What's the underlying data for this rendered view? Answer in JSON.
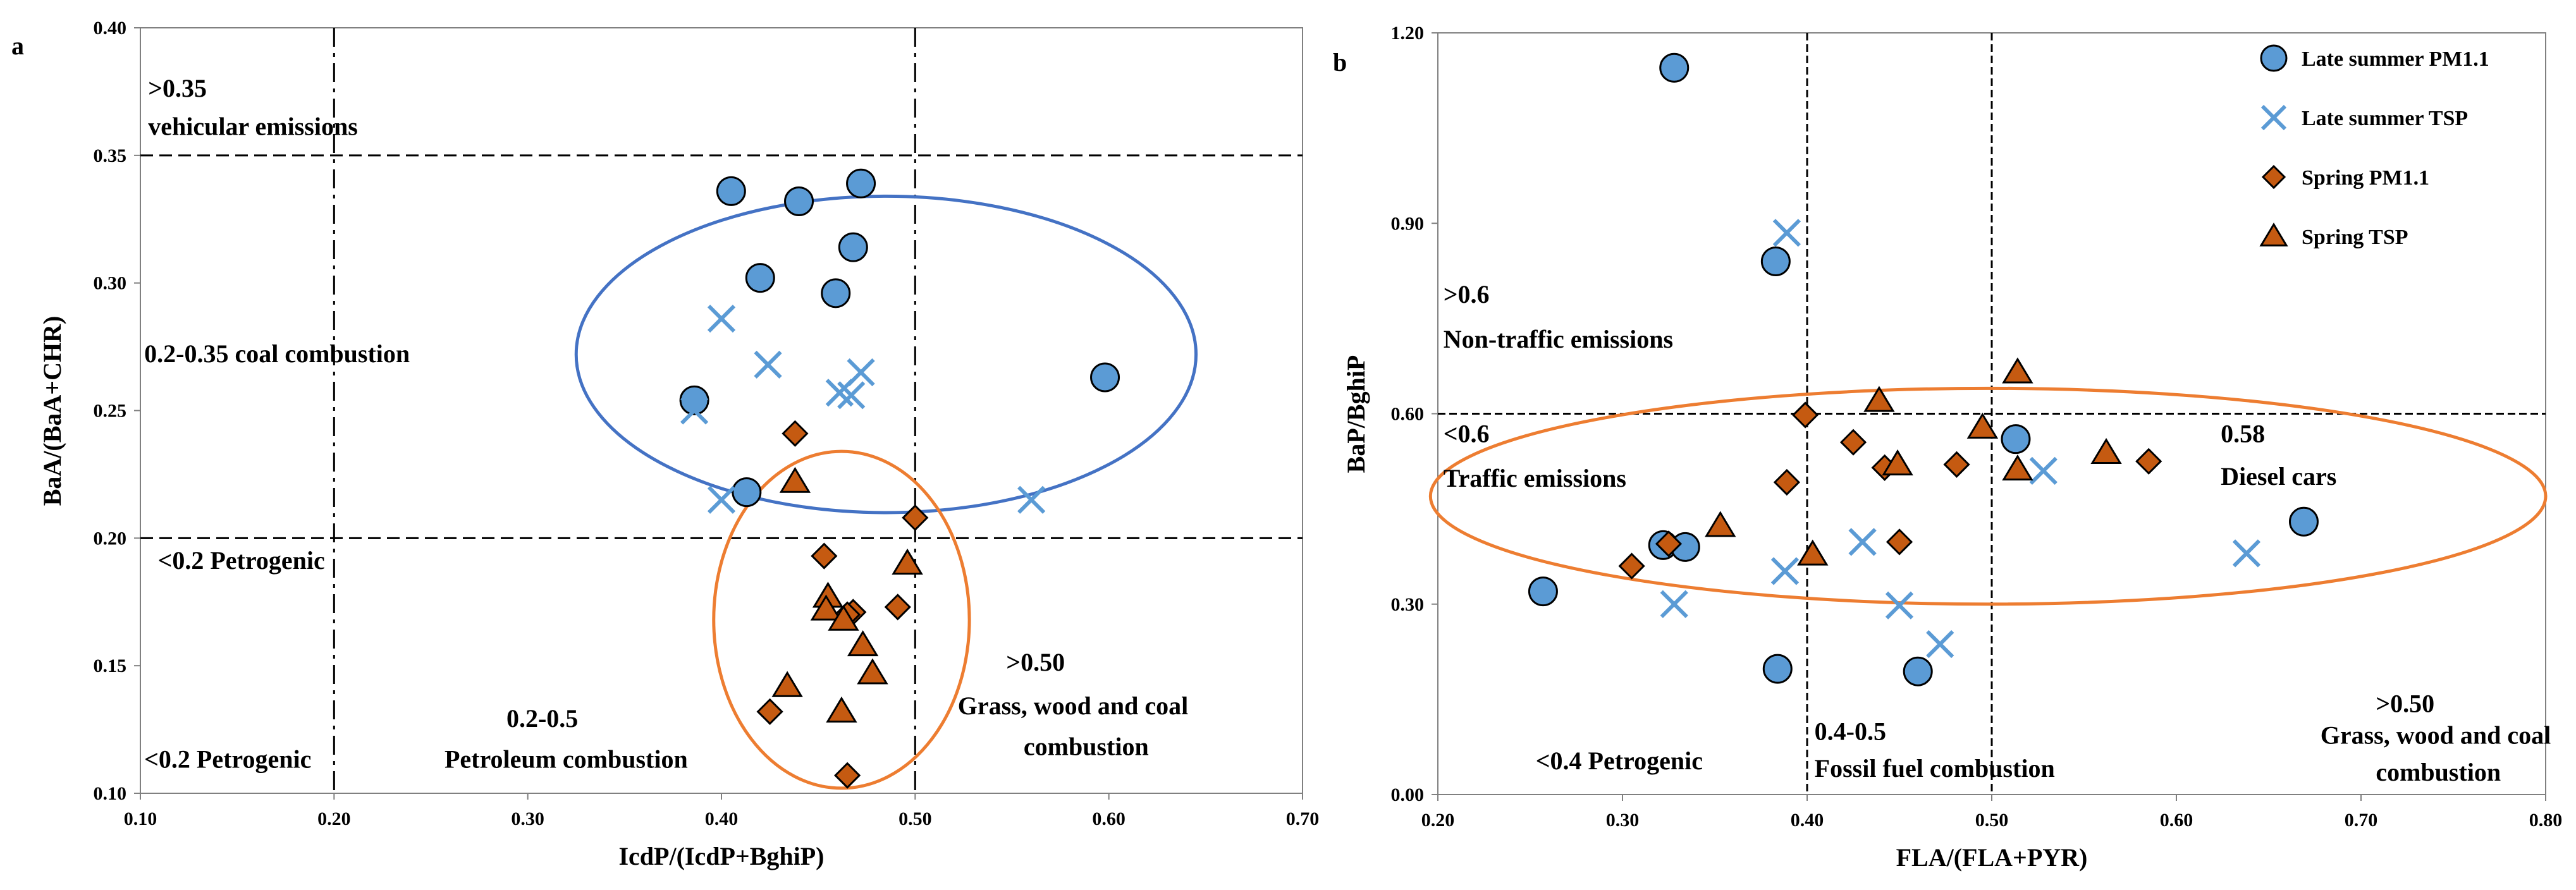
{
  "colors": {
    "late_summer": "#5B9BD5",
    "late_summer_stroke": "#000000",
    "spring": "#C55A11",
    "spring_stroke": "#000000",
    "ellipse_blue": "#4472C4",
    "ellipse_orange": "#ED7D31"
  },
  "chart_data": [
    {
      "panel_label": "a",
      "type": "scatter",
      "xlabel": "IcdP/(IcdP+BghiP)",
      "ylabel": "BaA/(BaA+CHR)",
      "xlim": [
        0.1,
        0.7
      ],
      "ylim": [
        0.1,
        0.4
      ],
      "xticks": [
        "0.10",
        "0.20",
        "0.30",
        "0.40",
        "0.50",
        "0.60",
        "0.70"
      ],
      "yticks": [
        "0.10",
        "0.15",
        "0.20",
        "0.25",
        "0.30",
        "0.35",
        "0.40"
      ],
      "reference_lines": {
        "horizontal": [
          0.2,
          0.35
        ],
        "vertical": [
          0.2,
          0.5
        ]
      },
      "annotations": [
        {
          "text": ">0.35",
          "x": 0.104,
          "y": 0.373
        },
        {
          "text": "vehicular emissions",
          "x": 0.104,
          "y": 0.358
        },
        {
          "text": "0.2-0.35  coal combustion",
          "x": 0.102,
          "y": 0.269
        },
        {
          "text": "<0.2 Petrogenic",
          "x": 0.109,
          "y": 0.188
        },
        {
          "text": "<0.2 Petrogenic",
          "x": 0.102,
          "y": 0.11
        },
        {
          "text": "0.2-0.5",
          "x": 0.289,
          "y": 0.126
        },
        {
          "text": "Petroleum combustion",
          "x": 0.257,
          "y": 0.11
        },
        {
          "text": ">0.50",
          "x": 0.547,
          "y": 0.148
        },
        {
          "text": "Grass, wood and coal",
          "x": 0.522,
          "y": 0.131
        },
        {
          "text": "combustion",
          "x": 0.556,
          "y": 0.115
        }
      ],
      "ellipses": [
        {
          "color": "blue",
          "cx": 0.485,
          "cy": 0.272,
          "rx": 0.16,
          "ry": 0.062
        },
        {
          "color": "orange",
          "cx": 0.462,
          "cy": 0.168,
          "rx": 0.066,
          "ry": 0.066
        }
      ],
      "series": [
        {
          "name": "Late summer PM1.1",
          "marker": "circle",
          "x": [
            0.405,
            0.44,
            0.472,
            0.468,
            0.42,
            0.459,
            0.386,
            0.413,
            0.598
          ],
          "y": [
            0.336,
            0.332,
            0.339,
            0.314,
            0.302,
            0.296,
            0.254,
            0.218,
            0.263
          ]
        },
        {
          "name": "Late summer TSP",
          "marker": "x",
          "x": [
            0.4,
            0.424,
            0.472,
            0.461,
            0.467,
            0.386,
            0.4,
            0.56
          ],
          "y": [
            0.286,
            0.268,
            0.265,
            0.257,
            0.256,
            0.25,
            0.215,
            0.215
          ]
        },
        {
          "name": "Spring PM1.1",
          "marker": "diamond",
          "x": [
            0.438,
            0.5,
            0.453,
            0.468,
            0.491,
            0.465,
            0.425,
            0.465
          ],
          "y": [
            0.241,
            0.208,
            0.193,
            0.171,
            0.173,
            0.17,
            0.132,
            0.107
          ]
        },
        {
          "name": "Spring TSP",
          "marker": "triangle",
          "x": [
            0.438,
            0.496,
            0.455,
            0.454,
            0.463,
            0.473,
            0.478,
            0.434,
            0.462
          ],
          "y": [
            0.222,
            0.19,
            0.177,
            0.172,
            0.168,
            0.158,
            0.147,
            0.142,
            0.132
          ]
        }
      ]
    },
    {
      "panel_label": "b",
      "type": "scatter",
      "xlabel": "FLA/(FLA+PYR)",
      "ylabel": "BaP/BghiP",
      "xlim": [
        0.2,
        0.8
      ],
      "ylim": [
        0.0,
        1.2
      ],
      "xticks": [
        "0.20",
        "0.30",
        "0.40",
        "0.50",
        "0.60",
        "0.70",
        "0.80"
      ],
      "yticks": [
        "0.00",
        "0.30",
        "0.60",
        "0.90",
        "1.20"
      ],
      "reference_lines": {
        "horizontal": [
          0.6
        ],
        "vertical": [
          0.4,
          0.5
        ]
      },
      "annotations": [
        {
          "text": ">0.6",
          "x": 0.203,
          "y": 0.775
        },
        {
          "text": "Non-traffic emissions",
          "x": 0.203,
          "y": 0.704
        },
        {
          "text": "<0.6",
          "x": 0.203,
          "y": 0.555
        },
        {
          "text": "Traffic emissions",
          "x": 0.203,
          "y": 0.485
        },
        {
          "text": "0.58",
          "x": 0.624,
          "y": 0.555
        },
        {
          "text": "Diesel cars",
          "x": 0.624,
          "y": 0.488
        },
        {
          "text": "<0.4 Petrogenic",
          "x": 0.253,
          "y": 0.04
        },
        {
          "text": "0.4-0.5",
          "x": 0.404,
          "y": 0.086
        },
        {
          "text": "Fossil fuel combustion",
          "x": 0.404,
          "y": 0.028
        },
        {
          "text": ">0.50",
          "x": 0.708,
          "y": 0.13
        },
        {
          "text": "Grass, wood and coal",
          "x": 0.678,
          "y": 0.08
        },
        {
          "text": "combustion",
          "x": 0.708,
          "y": 0.022
        }
      ],
      "ellipses": [
        {
          "color": "orange",
          "cx": 0.498,
          "cy": 0.47,
          "rx": 0.302,
          "ry": 0.17
        }
      ],
      "legend": {
        "position": "top-right",
        "entries": [
          "Late summer PM1.1",
          "Late summer TSP",
          "Spring PM1.1",
          "Spring TSP"
        ]
      },
      "series": [
        {
          "name": "Late summer PM1.1",
          "marker": "circle",
          "x": [
            0.328,
            0.383,
            0.257,
            0.322,
            0.334,
            0.384,
            0.46,
            0.513,
            0.669
          ],
          "y": [
            1.145,
            0.84,
            0.32,
            0.393,
            0.39,
            0.198,
            0.194,
            0.56,
            0.43
          ]
        },
        {
          "name": "Late summer TSP",
          "marker": "x",
          "x": [
            0.389,
            0.328,
            0.388,
            0.43,
            0.45,
            0.472,
            0.528,
            0.638
          ],
          "y": [
            0.885,
            0.3,
            0.352,
            0.398,
            0.298,
            0.237,
            0.51,
            0.38
          ]
        },
        {
          "name": "Spring PM1.1",
          "marker": "diamond",
          "x": [
            0.399,
            0.425,
            0.442,
            0.389,
            0.481,
            0.585,
            0.305,
            0.325,
            0.45
          ],
          "y": [
            0.598,
            0.555,
            0.515,
            0.492,
            0.52,
            0.525,
            0.36,
            0.395,
            0.398
          ]
        },
        {
          "name": "Spring TSP",
          "marker": "triangle",
          "x": [
            0.514,
            0.439,
            0.495,
            0.449,
            0.514,
            0.562,
            0.353,
            0.403
          ],
          "y": [
            0.665,
            0.62,
            0.578,
            0.52,
            0.512,
            0.538,
            0.423,
            0.378
          ]
        }
      ]
    }
  ]
}
